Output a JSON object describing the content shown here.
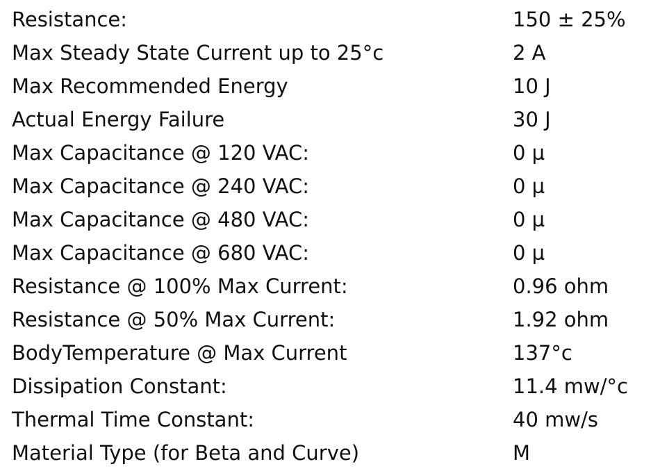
{
  "table": {
    "rows": [
      [
        "Resistance:",
        "150 ± 25%"
      ],
      [
        "Max Steady State Current up to 25°c",
        "2 A"
      ],
      [
        "Max Recommended Energy",
        "10 J"
      ],
      [
        "Actual Energy Failure",
        "30 J"
      ],
      [
        "Max Capacitance @ 120 VAC:",
        "0 µ"
      ],
      [
        "Max Capacitance @ 240 VAC:",
        "0 µ"
      ],
      [
        "Max Capacitance @ 480 VAC:",
        "0 µ"
      ],
      [
        "Max Capacitance @ 680 VAC:",
        "0 µ"
      ],
      [
        "Resistance @ 100% Max Current:",
        "0.96 ohm"
      ],
      [
        "Resistance @ 50% Max Current:",
        "1.92 ohm"
      ],
      [
        "BodyTemperature @ Max Current",
        "137°c"
      ],
      [
        "Dissipation Constant:",
        "11.4 mw/°c"
      ],
      [
        "Thermal Time Constant:",
        "40 mw/s"
      ],
      [
        "Material Type (for Beta and Curve)",
        "M"
      ]
    ]
  }
}
